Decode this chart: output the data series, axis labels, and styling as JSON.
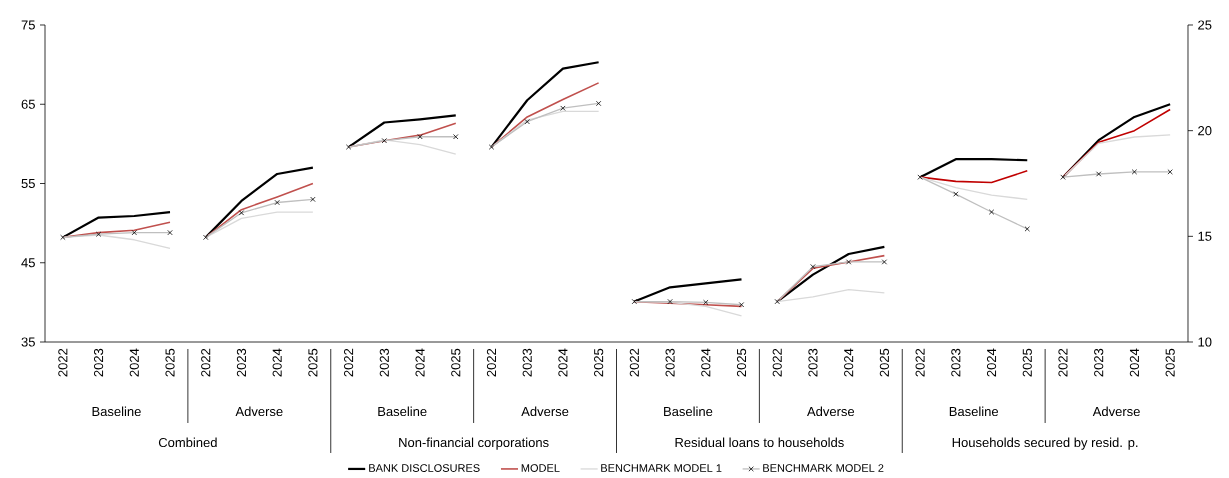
{
  "chart_data": {
    "type": "line",
    "categories": [
      "2022",
      "2023",
      "2024",
      "2025",
      "2022",
      "2023",
      "2024",
      "2025",
      "2022",
      "2023",
      "2024",
      "2025",
      "2022",
      "2023",
      "2024",
      "2025",
      "2022",
      "2023",
      "2024",
      "2025",
      "2022",
      "2023",
      "2024",
      "2025",
      "2022",
      "2023",
      "2024",
      "2025",
      "2022",
      "2023",
      "2024",
      "2025"
    ],
    "annotations": [
      "Baseline",
      "Adverse",
      "Baseline",
      "Adverse",
      "Baseline",
      "Adverse",
      "Baseline",
      "Adverse",
      "Combined",
      "Non-financial corporations",
      "Residual loans to households",
      "Households secured by resid. p."
    ],
    "ylim": [
      35,
      75
    ],
    "yticks": [
      35,
      45,
      55,
      65,
      75
    ],
    "y2lim": [
      10,
      25
    ],
    "y2ticks": [
      10,
      15,
      20,
      25
    ],
    "legend": "bottom",
    "series": [
      {
        "name": "BANK DISCLOSURES",
        "color": "#000000",
        "values": [
          48.2,
          50.7,
          50.9,
          51.4,
          null,
          null,
          null,
          null,
          null,
          null,
          null,
          null,
          null,
          null,
          null,
          null,
          null,
          null,
          null,
          null,
          null,
          null,
          null,
          null,
          null,
          null,
          null,
          null,
          null,
          null,
          null,
          null
        ]
      },
      {
        "name": "MODEL",
        "color": "#c0504d",
        "values": [
          48.2,
          48.8,
          49.1,
          50.1,
          null,
          null,
          null,
          null,
          null,
          null,
          null,
          null,
          null,
          null,
          null,
          null,
          null,
          null,
          null,
          null,
          null,
          null,
          null,
          null,
          null,
          null,
          null,
          null,
          null,
          null,
          null,
          null
        ]
      },
      {
        "name": "BENCHMARK MODEL 1",
        "color": "#d9d9d9",
        "values": [
          48.2,
          48.5,
          47.9,
          46.8,
          null,
          null,
          null,
          null,
          null,
          null,
          null,
          null,
          null,
          null,
          null,
          null,
          null,
          null,
          null,
          null,
          null,
          null,
          null,
          null,
          null,
          null,
          null,
          null,
          null,
          null,
          null,
          null
        ]
      },
      {
        "name": "BENCHMARK MODEL 2",
        "color": "#bfbfbf",
        "marker": "cross",
        "values": [
          48.2,
          48.6,
          48.8,
          48.8,
          null,
          null,
          null,
          null,
          null,
          null,
          null,
          null,
          null,
          null,
          null,
          null,
          null,
          null,
          null,
          null,
          null,
          null,
          null,
          null,
          null,
          null,
          null,
          null,
          null,
          null,
          null,
          null
        ]
      },
      {
        "color": "#000000",
        "values": [
          null,
          null,
          null,
          null,
          48.2,
          52.8,
          56.2,
          57.0,
          null,
          null,
          null,
          null,
          null,
          null,
          null,
          null,
          null,
          null,
          null,
          null,
          null,
          null,
          null,
          null,
          null,
          null,
          null,
          null,
          null,
          null,
          null,
          null
        ]
      },
      {
        "color": "#c0504d",
        "values": [
          null,
          null,
          null,
          null,
          48.2,
          51.7,
          53.3,
          55.0,
          null,
          null,
          null,
          null,
          null,
          null,
          null,
          null,
          null,
          null,
          null,
          null,
          null,
          null,
          null,
          null,
          null,
          null,
          null,
          null,
          null,
          null,
          null,
          null
        ]
      },
      {
        "color": "#d9d9d9",
        "values": [
          null,
          null,
          null,
          null,
          48.2,
          50.6,
          51.4,
          51.4,
          null,
          null,
          null,
          null,
          null,
          null,
          null,
          null,
          null,
          null,
          null,
          null,
          null,
          null,
          null,
          null,
          null,
          null,
          null,
          null,
          null,
          null,
          null,
          null
        ]
      },
      {
        "color": "#bfbfbf",
        "marker": "cross",
        "values": [
          null,
          null,
          null,
          null,
          48.2,
          51.3,
          52.6,
          53.0,
          null,
          null,
          null,
          null,
          null,
          null,
          null,
          null,
          null,
          null,
          null,
          null,
          null,
          null,
          null,
          null,
          null,
          null,
          null,
          null,
          null,
          null,
          null,
          null
        ]
      },
      {
        "color": "#000000",
        "values": [
          null,
          null,
          null,
          null,
          null,
          null,
          null,
          null,
          59.6,
          62.7,
          63.1,
          63.6,
          null,
          null,
          null,
          null,
          null,
          null,
          null,
          null,
          null,
          null,
          null,
          null,
          null,
          null,
          null,
          null,
          null,
          null,
          null,
          null
        ]
      },
      {
        "color": "#c0504d",
        "values": [
          null,
          null,
          null,
          null,
          null,
          null,
          null,
          null,
          59.6,
          60.4,
          61.1,
          62.6,
          null,
          null,
          null,
          null,
          null,
          null,
          null,
          null,
          null,
          null,
          null,
          null,
          null,
          null,
          null,
          null,
          null,
          null,
          null,
          null
        ]
      },
      {
        "color": "#d9d9d9",
        "values": [
          null,
          null,
          null,
          null,
          null,
          null,
          null,
          null,
          59.6,
          60.5,
          59.9,
          58.7,
          null,
          null,
          null,
          null,
          null,
          null,
          null,
          null,
          null,
          null,
          null,
          null,
          null,
          null,
          null,
          null,
          null,
          null,
          null,
          null
        ]
      },
      {
        "color": "#bfbfbf",
        "marker": "cross",
        "values": [
          null,
          null,
          null,
          null,
          null,
          null,
          null,
          null,
          59.6,
          60.4,
          60.9,
          60.9,
          null,
          null,
          null,
          null,
          null,
          null,
          null,
          null,
          null,
          null,
          null,
          null,
          null,
          null,
          null,
          null,
          null,
          null,
          null,
          null
        ]
      },
      {
        "color": "#000000",
        "values": [
          null,
          null,
          null,
          null,
          null,
          null,
          null,
          null,
          null,
          null,
          null,
          null,
          59.6,
          65.5,
          69.5,
          70.3,
          null,
          null,
          null,
          null,
          null,
          null,
          null,
          null,
          null,
          null,
          null,
          null,
          null,
          null,
          null,
          null
        ]
      },
      {
        "color": "#c0504d",
        "values": [
          null,
          null,
          null,
          null,
          null,
          null,
          null,
          null,
          null,
          null,
          null,
          null,
          59.6,
          63.4,
          65.6,
          67.7,
          null,
          null,
          null,
          null,
          null,
          null,
          null,
          null,
          null,
          null,
          null,
          null,
          null,
          null,
          null,
          null
        ]
      },
      {
        "color": "#d9d9d9",
        "values": [
          null,
          null,
          null,
          null,
          null,
          null,
          null,
          null,
          null,
          null,
          null,
          null,
          59.6,
          63.0,
          64.1,
          64.1,
          null,
          null,
          null,
          null,
          null,
          null,
          null,
          null,
          null,
          null,
          null,
          null,
          null,
          null,
          null,
          null
        ]
      },
      {
        "color": "#bfbfbf",
        "marker": "cross",
        "values": [
          null,
          null,
          null,
          null,
          null,
          null,
          null,
          null,
          null,
          null,
          null,
          null,
          59.6,
          62.8,
          64.5,
          65.1,
          null,
          null,
          null,
          null,
          null,
          null,
          null,
          null,
          null,
          null,
          null,
          null,
          null,
          null,
          null,
          null
        ]
      },
      {
        "color": "#000000",
        "values": [
          null,
          null,
          null,
          null,
          null,
          null,
          null,
          null,
          null,
          null,
          null,
          null,
          null,
          null,
          null,
          null,
          40.1,
          41.9,
          42.4,
          42.9,
          null,
          null,
          null,
          null,
          null,
          null,
          null,
          null,
          null,
          null,
          null,
          null
        ]
      },
      {
        "color": "#c0504d",
        "values": [
          null,
          null,
          null,
          null,
          null,
          null,
          null,
          null,
          null,
          null,
          null,
          null,
          null,
          null,
          null,
          null,
          40.1,
          39.9,
          39.7,
          39.5,
          null,
          null,
          null,
          null,
          null,
          null,
          null,
          null,
          null,
          null,
          null,
          null
        ]
      },
      {
        "color": "#d9d9d9",
        "values": [
          null,
          null,
          null,
          null,
          null,
          null,
          null,
          null,
          null,
          null,
          null,
          null,
          null,
          null,
          null,
          null,
          40.1,
          40.0,
          39.5,
          38.3,
          null,
          null,
          null,
          null,
          null,
          null,
          null,
          null,
          null,
          null,
          null,
          null
        ]
      },
      {
        "color": "#bfbfbf",
        "marker": "cross",
        "values": [
          null,
          null,
          null,
          null,
          null,
          null,
          null,
          null,
          null,
          null,
          null,
          null,
          null,
          null,
          null,
          null,
          40.1,
          40.1,
          40.0,
          39.7,
          null,
          null,
          null,
          null,
          null,
          null,
          null,
          null,
          null,
          null,
          null,
          null
        ]
      },
      {
        "color": "#000000",
        "values": [
          null,
          null,
          null,
          null,
          null,
          null,
          null,
          null,
          null,
          null,
          null,
          null,
          null,
          null,
          null,
          null,
          null,
          null,
          null,
          null,
          40.1,
          43.5,
          46.1,
          47.0,
          null,
          null,
          null,
          null,
          null,
          null,
          null,
          null
        ]
      },
      {
        "color": "#c0504d",
        "values": [
          null,
          null,
          null,
          null,
          null,
          null,
          null,
          null,
          null,
          null,
          null,
          null,
          null,
          null,
          null,
          null,
          null,
          null,
          null,
          null,
          40.1,
          44.3,
          45.1,
          45.9,
          null,
          null,
          null,
          null,
          null,
          null,
          null,
          null
        ]
      },
      {
        "color": "#d9d9d9",
        "values": [
          null,
          null,
          null,
          null,
          null,
          null,
          null,
          null,
          null,
          null,
          null,
          null,
          null,
          null,
          null,
          null,
          null,
          null,
          null,
          null,
          40.1,
          40.7,
          41.6,
          41.2,
          null,
          null,
          null,
          null,
          null,
          null,
          null,
          null
        ]
      },
      {
        "color": "#bfbfbf",
        "marker": "cross",
        "values": [
          null,
          null,
          null,
          null,
          null,
          null,
          null,
          null,
          null,
          null,
          null,
          null,
          null,
          null,
          null,
          null,
          null,
          null,
          null,
          null,
          40.1,
          44.5,
          45.1,
          45.1,
          null,
          null,
          null,
          null,
          null,
          null,
          null,
          null
        ]
      },
      {
        "color": "#000000",
        "axis": "y2",
        "values": [
          null,
          null,
          null,
          null,
          null,
          null,
          null,
          null,
          null,
          null,
          null,
          null,
          null,
          null,
          null,
          null,
          null,
          null,
          null,
          null,
          null,
          null,
          null,
          null,
          17.8,
          18.65,
          18.65,
          18.6,
          null,
          null,
          null,
          null
        ]
      },
      {
        "color": "#c00000",
        "axis": "y2",
        "values": [
          null,
          null,
          null,
          null,
          null,
          null,
          null,
          null,
          null,
          null,
          null,
          null,
          null,
          null,
          null,
          null,
          null,
          null,
          null,
          null,
          null,
          null,
          null,
          null,
          17.8,
          17.6,
          17.55,
          18.1,
          null,
          null,
          null,
          null
        ]
      },
      {
        "color": "#d9d9d9",
        "axis": "y2",
        "values": [
          null,
          null,
          null,
          null,
          null,
          null,
          null,
          null,
          null,
          null,
          null,
          null,
          null,
          null,
          null,
          null,
          null,
          null,
          null,
          null,
          null,
          null,
          null,
          null,
          17.8,
          17.3,
          16.95,
          16.75,
          null,
          null,
          null,
          null
        ]
      },
      {
        "color": "#bfbfbf",
        "marker": "cross",
        "axis": "y2",
        "values": [
          null,
          null,
          null,
          null,
          null,
          null,
          null,
          null,
          null,
          null,
          null,
          null,
          null,
          null,
          null,
          null,
          null,
          null,
          null,
          null,
          null,
          null,
          null,
          null,
          17.8,
          17.0,
          16.15,
          15.35,
          null,
          null,
          null,
          null
        ]
      },
      {
        "color": "#000000",
        "axis": "y2",
        "values": [
          null,
          null,
          null,
          null,
          null,
          null,
          null,
          null,
          null,
          null,
          null,
          null,
          null,
          null,
          null,
          null,
          null,
          null,
          null,
          null,
          null,
          null,
          null,
          null,
          null,
          null,
          null,
          null,
          17.8,
          19.55,
          20.65,
          21.25
        ]
      },
      {
        "color": "#c00000",
        "axis": "y2",
        "values": [
          null,
          null,
          null,
          null,
          null,
          null,
          null,
          null,
          null,
          null,
          null,
          null,
          null,
          null,
          null,
          null,
          null,
          null,
          null,
          null,
          null,
          null,
          null,
          null,
          null,
          null,
          null,
          null,
          17.8,
          19.45,
          20.0,
          21.0
        ]
      },
      {
        "color": "#d9d9d9",
        "axis": "y2",
        "values": [
          null,
          null,
          null,
          null,
          null,
          null,
          null,
          null,
          null,
          null,
          null,
          null,
          null,
          null,
          null,
          null,
          null,
          null,
          null,
          null,
          null,
          null,
          null,
          null,
          null,
          null,
          null,
          null,
          17.8,
          19.4,
          19.7,
          19.8
        ]
      },
      {
        "color": "#bfbfbf",
        "marker": "cross",
        "axis": "y2",
        "values": [
          null,
          null,
          null,
          null,
          null,
          null,
          null,
          null,
          null,
          null,
          null,
          null,
          null,
          null,
          null,
          null,
          null,
          null,
          null,
          null,
          null,
          null,
          null,
          null,
          null,
          null,
          null,
          null,
          17.8,
          17.95,
          18.05,
          18.05
        ]
      }
    ]
  }
}
